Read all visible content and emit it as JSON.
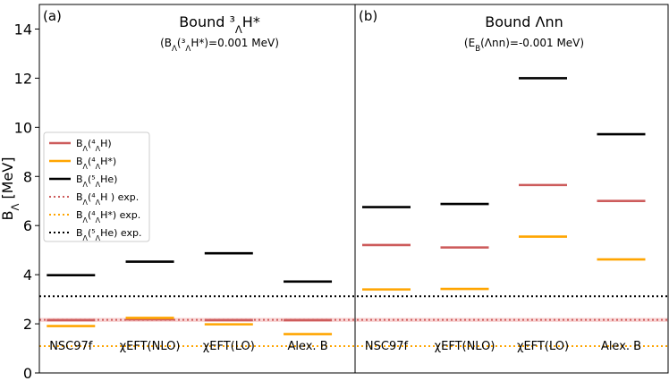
{
  "colors": {
    "h4": "#cd5c5c",
    "h4star": "#ffa500",
    "he5": "#000000",
    "exp_h4_band": "#f4b5b5"
  },
  "chart_data": {
    "type": "scatter",
    "ylabel": "B_Λ [MeV]",
    "ylim": [
      0,
      15
    ],
    "yticks": [
      0,
      2,
      4,
      6,
      8,
      10,
      12,
      14
    ],
    "legend": {
      "position": "center-left",
      "entries": [
        {
          "key": "h4",
          "label": "B_Λ(⁴_ΛH)",
          "style": "solid"
        },
        {
          "key": "h4star",
          "label": "B_Λ(⁴_ΛH*)",
          "style": "solid"
        },
        {
          "key": "he5",
          "label": "B_Λ(⁵_ΛHe)",
          "style": "solid"
        },
        {
          "key": "h4",
          "label": "B_Λ(⁴_ΛH ) exp.",
          "style": "dotted"
        },
        {
          "key": "h4star",
          "label": "B_Λ(⁴_ΛH*) exp.",
          "style": "dotted"
        },
        {
          "key": "he5",
          "label": "B_Λ(⁵_ΛHe) exp.",
          "style": "dotted"
        }
      ]
    },
    "experimental": {
      "h4": 2.16,
      "h4star": 1.09,
      "he5": 3.12,
      "h4_band": 0.08
    },
    "panels": [
      {
        "id": "a",
        "tag": "(a)",
        "title": "Bound ³_ΛH*",
        "subtitle": "(B_Λ(³_ΛH*)=0.001 MeV)",
        "categories": [
          "NSC97f",
          "χEFT(NLO)",
          "χEFT(LO)",
          "Alex. B"
        ],
        "series": [
          {
            "name": "h4",
            "values": [
              2.15,
              2.18,
              2.15,
              2.15
            ]
          },
          {
            "name": "h4star",
            "values": [
              1.91,
              2.24,
              1.98,
              1.58
            ]
          },
          {
            "name": "he5",
            "values": [
              3.98,
              4.53,
              4.87,
              3.72
            ]
          }
        ]
      },
      {
        "id": "b",
        "tag": "(b)",
        "title": "Bound Λnn",
        "subtitle": "(E_B(Λnn)=-0.001 MeV)",
        "categories": [
          "NSC97f",
          "χEFT(NLO)",
          "χEFT(LO)",
          "Alex. B"
        ],
        "series": [
          {
            "name": "h4",
            "values": [
              5.21,
              5.11,
              7.65,
              7.0
            ]
          },
          {
            "name": "h4star",
            "values": [
              3.4,
              3.42,
              5.55,
              4.62
            ]
          },
          {
            "name": "he5",
            "values": [
              6.75,
              6.88,
              12.0,
              9.72
            ]
          }
        ]
      }
    ]
  }
}
